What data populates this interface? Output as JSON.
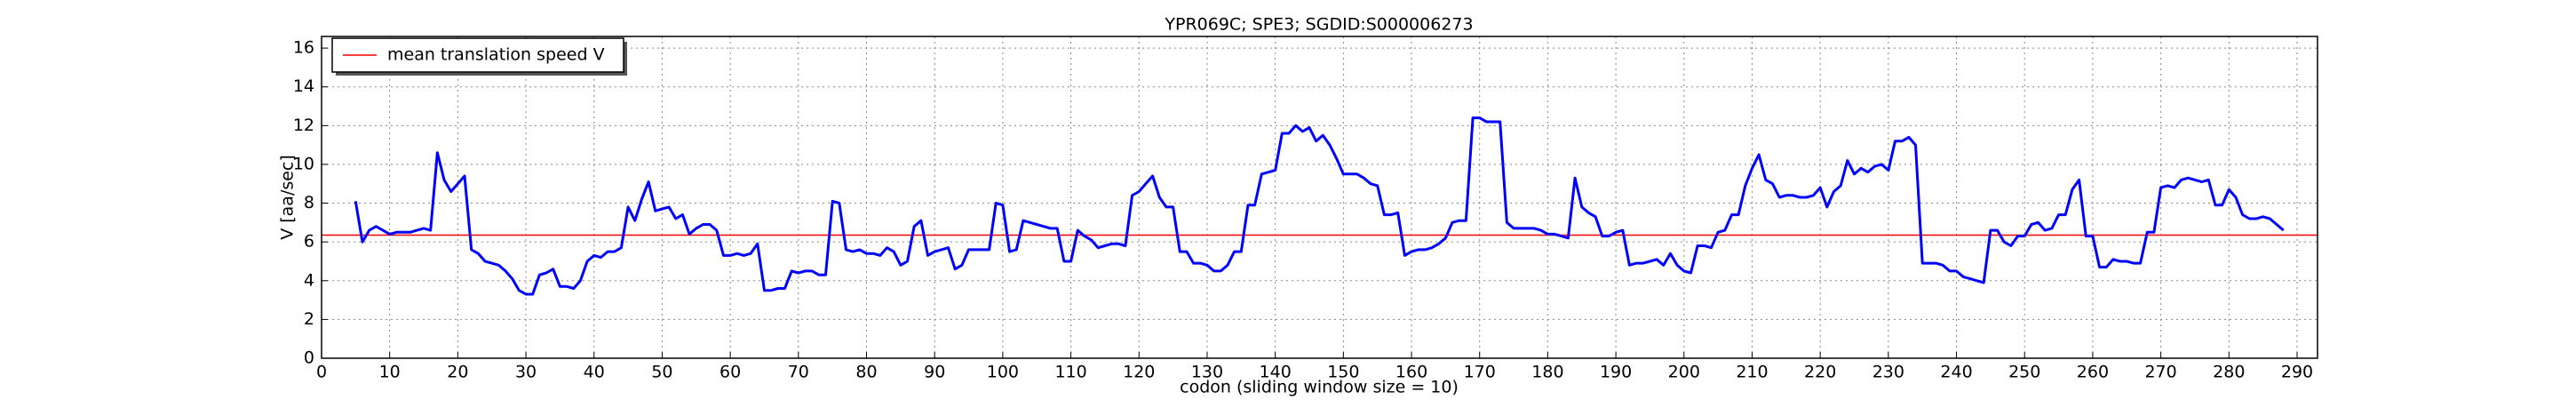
{
  "chart_data": {
    "type": "line",
    "title": "YPR069C; SPE3; SGDID:S000006273",
    "xlabel": "codon  (sliding window size = 10)",
    "ylabel": "V [aa/sec]",
    "x": [
      5,
      6,
      7,
      8,
      9,
      10,
      11,
      12,
      13,
      14,
      15,
      16,
      17,
      18,
      19,
      20,
      21,
      22,
      23,
      24,
      25,
      26,
      27,
      28,
      29,
      30,
      31,
      32,
      33,
      34,
      35,
      36,
      37,
      38,
      39,
      40,
      41,
      42,
      43,
      44,
      45,
      46,
      47,
      48,
      49,
      50,
      51,
      52,
      53,
      54,
      55,
      56,
      57,
      58,
      59,
      60,
      61,
      62,
      63,
      64,
      65,
      66,
      67,
      68,
      69,
      70,
      71,
      72,
      73,
      74,
      75,
      76,
      77,
      78,
      79,
      80,
      81,
      82,
      83,
      84,
      85,
      86,
      87,
      88,
      89,
      90,
      91,
      92,
      93,
      94,
      95,
      96,
      97,
      98,
      99,
      100,
      101,
      102,
      103,
      104,
      105,
      106,
      107,
      108,
      109,
      110,
      111,
      112,
      113,
      114,
      115,
      116,
      117,
      118,
      119,
      120,
      121,
      122,
      123,
      124,
      125,
      126,
      127,
      128,
      129,
      130,
      131,
      132,
      133,
      134,
      135,
      136,
      137,
      138,
      139,
      140,
      141,
      142,
      143,
      144,
      145,
      146,
      147,
      148,
      149,
      150,
      151,
      152,
      153,
      154,
      155,
      156,
      157,
      158,
      159,
      160,
      161,
      162,
      163,
      164,
      165,
      166,
      167,
      168,
      169,
      170,
      171,
      172,
      173,
      174,
      175,
      176,
      177,
      178,
      179,
      180,
      181,
      182,
      183,
      184,
      185,
      186,
      187,
      188,
      189,
      190,
      191,
      192,
      193,
      194,
      195,
      196,
      197,
      198,
      199,
      200,
      201,
      202,
      203,
      204,
      205,
      206,
      207,
      208,
      209,
      210,
      211,
      212,
      213,
      214,
      215,
      216,
      217,
      218,
      219,
      220,
      221,
      222,
      223,
      224,
      225,
      226,
      227,
      228,
      229,
      230,
      231,
      232,
      233,
      234,
      235,
      236,
      237,
      238,
      239,
      240,
      241,
      242,
      243,
      244,
      245,
      246,
      247,
      248,
      249,
      250,
      251,
      252,
      253,
      254,
      255,
      256,
      257,
      258,
      259,
      260,
      261,
      262,
      263,
      264,
      265,
      266,
      267,
      268,
      269,
      270,
      271,
      272,
      273,
      274,
      275,
      276,
      277,
      278,
      279,
      280,
      281,
      282,
      283,
      284,
      285,
      286,
      287,
      288
    ],
    "series": [
      {
        "color": "#0000ff",
        "values": [
          8.1,
          6.0,
          6.6,
          6.8,
          6.6,
          6.4,
          6.5,
          6.5,
          6.5,
          6.6,
          6.7,
          6.6,
          10.6,
          9.2,
          8.6,
          9.0,
          9.4,
          5.6,
          5.4,
          5.0,
          4.9,
          4.8,
          4.5,
          4.1,
          3.5,
          3.3,
          3.3,
          4.3,
          4.4,
          4.6,
          3.7,
          3.7,
          3.6,
          4.0,
          5.0,
          5.3,
          5.2,
          5.5,
          5.5,
          5.7,
          7.8,
          7.1,
          8.2,
          9.1,
          7.6,
          7.7,
          7.8,
          7.2,
          7.4,
          6.4,
          6.7,
          6.9,
          6.9,
          6.6,
          5.3,
          5.3,
          5.4,
          5.3,
          5.4,
          5.9,
          3.5,
          3.5,
          3.6,
          3.6,
          4.5,
          4.4,
          4.5,
          4.5,
          4.3,
          4.3,
          8.1,
          8.0,
          5.6,
          5.5,
          5.6,
          5.4,
          5.4,
          5.3,
          5.7,
          5.5,
          4.8,
          5.0,
          6.8,
          7.1,
          5.3,
          5.5,
          5.6,
          5.7,
          4.6,
          4.8,
          5.6,
          5.6,
          5.6,
          5.6,
          8.0,
          7.9,
          5.5,
          5.6,
          7.1,
          7.0,
          6.9,
          6.8,
          6.7,
          6.7,
          5.0,
          5.0,
          6.6,
          6.3,
          6.1,
          5.7,
          5.8,
          5.9,
          5.9,
          5.8,
          8.4,
          8.6,
          9.0,
          9.4,
          8.3,
          7.8,
          7.8,
          5.5,
          5.5,
          4.9,
          4.9,
          4.8,
          4.5,
          4.5,
          4.8,
          5.5,
          5.5,
          7.9,
          7.9,
          9.5,
          9.6,
          9.7,
          11.6,
          11.6,
          12.0,
          11.7,
          11.9,
          11.2,
          11.5,
          11.0,
          10.3,
          9.5,
          9.5,
          9.5,
          9.3,
          9.0,
          8.9,
          7.4,
          7.4,
          7.5,
          5.3,
          5.5,
          5.6,
          5.6,
          5.7,
          5.9,
          6.2,
          7.0,
          7.1,
          7.1,
          12.4,
          12.4,
          12.2,
          12.2,
          12.2,
          7.0,
          6.7,
          6.7,
          6.7,
          6.7,
          6.6,
          6.4,
          6.4,
          6.3,
          6.2,
          9.3,
          7.8,
          7.5,
          7.3,
          6.3,
          6.3,
          6.5,
          6.6,
          4.8,
          4.9,
          4.9,
          5.0,
          5.1,
          4.8,
          5.4,
          4.8,
          4.5,
          4.4,
          5.8,
          5.8,
          5.7,
          6.5,
          6.6,
          7.4,
          7.4,
          8.9,
          9.8,
          10.5,
          9.2,
          9.0,
          8.3,
          8.4,
          8.4,
          8.3,
          8.3,
          8.4,
          8.8,
          7.8,
          8.6,
          8.9,
          10.2,
          9.5,
          9.8,
          9.6,
          9.9,
          10.0,
          9.7,
          11.2,
          11.2,
          11.4,
          11.0,
          4.9,
          4.9,
          4.9,
          4.8,
          4.5,
          4.5,
          4.2,
          4.1,
          4.0,
          3.9,
          6.6,
          6.6,
          6.0,
          5.8,
          6.3,
          6.3,
          6.9,
          7.0,
          6.6,
          6.7,
          7.4,
          7.4,
          8.7,
          9.2,
          6.3,
          6.3,
          4.7,
          4.7,
          5.1,
          5.0,
          5.0,
          4.9,
          4.9,
          6.5,
          6.5,
          8.8,
          8.9,
          8.8,
          9.2,
          9.3,
          9.2,
          9.1,
          9.2,
          7.9,
          7.9,
          8.7,
          8.3,
          7.4,
          7.2,
          7.2,
          7.3,
          7.2,
          6.9,
          6.6
        ]
      }
    ],
    "hlines": [
      {
        "name": "mean translation speed V",
        "color": "#ff0000",
        "value": 6.35
      }
    ],
    "xlim": [
      0,
      293
    ],
    "ylim": [
      0,
      16.6
    ],
    "xticks": [
      0,
      10,
      20,
      30,
      40,
      50,
      60,
      70,
      80,
      90,
      100,
      110,
      120,
      130,
      140,
      150,
      160,
      170,
      180,
      190,
      200,
      210,
      220,
      230,
      240,
      250,
      260,
      270,
      280,
      290
    ],
    "yticks": [
      0,
      2,
      4,
      6,
      8,
      10,
      12,
      14,
      16
    ],
    "grid": true,
    "legend": "upper left"
  }
}
